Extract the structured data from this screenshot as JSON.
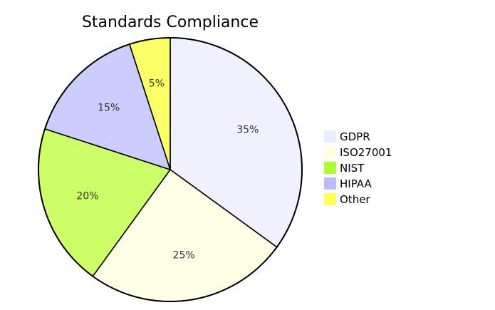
{
  "chart_data": {
    "type": "pie",
    "title": "Standards Compliance",
    "categories": [
      "GDPR",
      "ISO27001",
      "NIST",
      "HIPAA",
      "Other"
    ],
    "values": [
      35,
      25,
      20,
      15,
      5
    ],
    "value_labels": [
      "35%",
      "25%",
      "20%",
      "15%",
      "5%"
    ],
    "colors": [
      "#f0f0ff",
      "#ffffe5",
      "#ccff66",
      "#ccccff",
      "#ffff66"
    ],
    "legend_colors": [
      "#ececff",
      "#ffffe0",
      "#adff2f",
      "#bbbbff",
      "#ffff55"
    ],
    "start": "12 o'clock",
    "direction": "clockwise",
    "legend_position": "right"
  }
}
